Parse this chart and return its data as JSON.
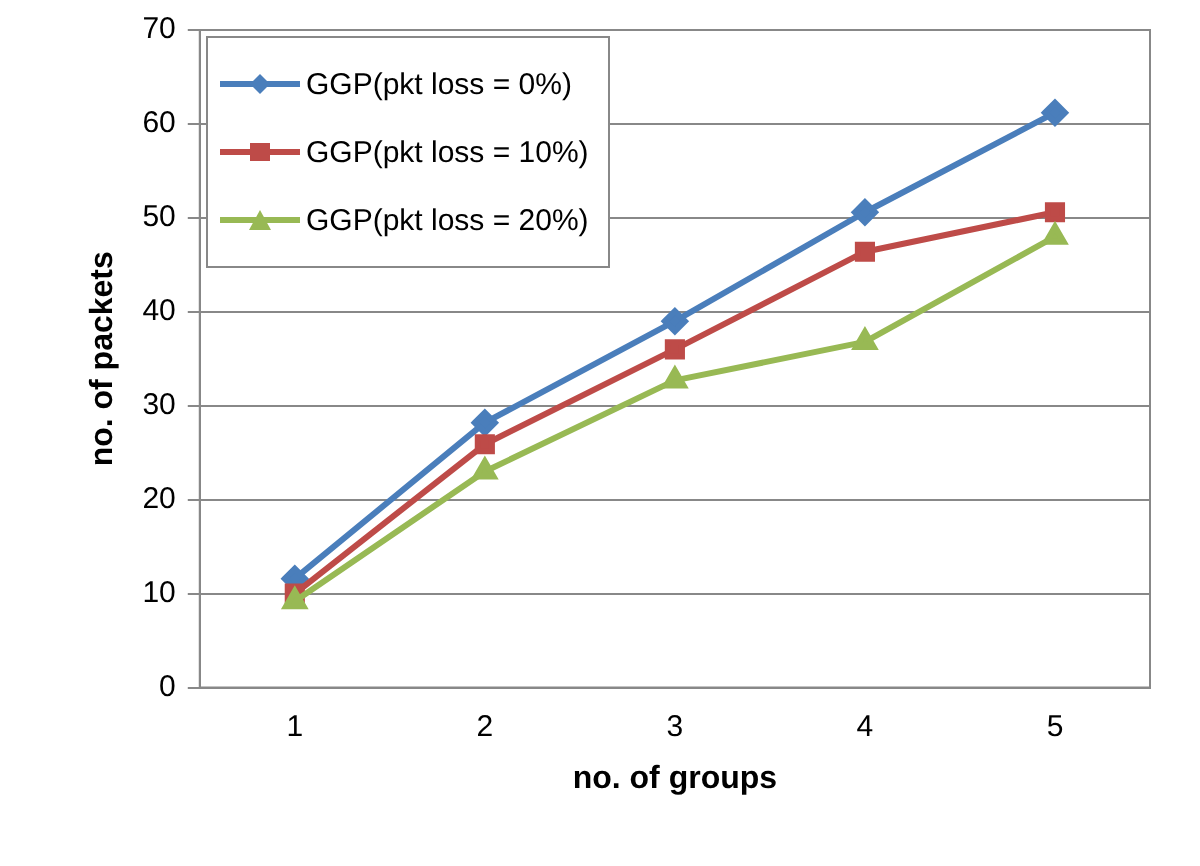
{
  "chart_data": {
    "type": "line",
    "xlabel": "no. of groups",
    "ylabel": "no. of packets",
    "categories": [
      "1",
      "2",
      "3",
      "4",
      "5"
    ],
    "series": [
      {
        "name": "GGP(pkt loss = 0%)",
        "color": "#4a7ebb",
        "marker": "diamond",
        "values": [
          11.6,
          28.2,
          39,
          50.6,
          61.2
        ]
      },
      {
        "name": "GGP(pkt loss = 10%)",
        "color": "#be4b48",
        "marker": "square",
        "values": [
          10,
          25.9,
          36,
          46.4,
          50.6
        ]
      },
      {
        "name": "GGP(pkt loss = 20%)",
        "color": "#98b954",
        "marker": "triangle",
        "values": [
          9.2,
          23,
          32.7,
          36.8,
          48
        ]
      }
    ],
    "ylim": [
      0,
      70
    ],
    "yticks": [
      0,
      10,
      20,
      30,
      40,
      50,
      60,
      70
    ],
    "grid": "y",
    "legend": "top left"
  }
}
